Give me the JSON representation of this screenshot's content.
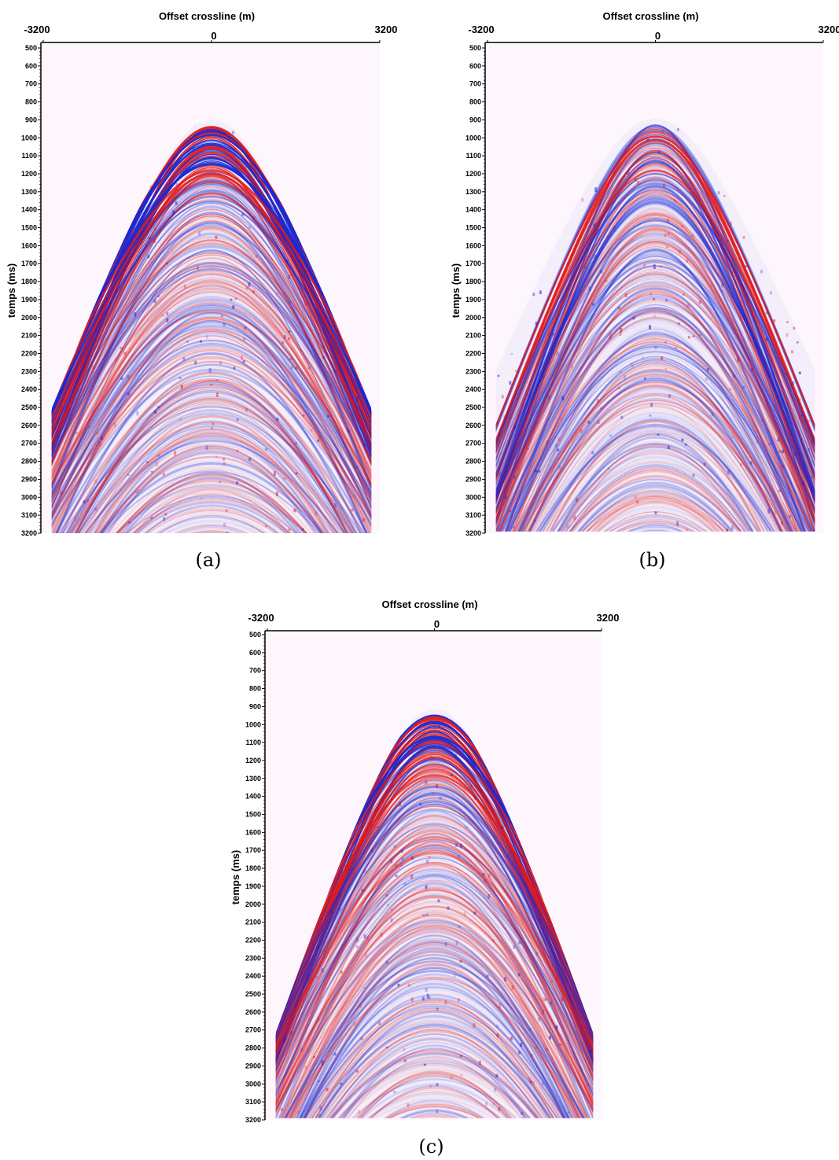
{
  "panels": [
    {
      "xlabel": "Offset crossline (m)",
      "ylabel": "temps (ms)",
      "xlim": [
        -3200,
        3200
      ],
      "xticks": [
        -3200,
        0,
        3200
      ],
      "ylim": [
        500,
        3200
      ],
      "yticks": [
        500,
        600,
        700,
        800,
        900,
        1000,
        1100,
        1200,
        1300,
        1400,
        1500,
        1600,
        1700,
        1800,
        1900,
        2000,
        2100,
        2200,
        2300,
        2400,
        2500,
        2600,
        2700,
        2800,
        2900,
        3000,
        3100,
        3200
      ],
      "caption": "(a)"
    },
    {
      "xlabel": "Offset crossline (m)",
      "ylabel": "temps (ms)",
      "xlim": [
        -3200,
        3200
      ],
      "xticks": [
        -3200,
        0,
        3200
      ],
      "ylim": [
        500,
        3200
      ],
      "yticks": [
        500,
        600,
        700,
        800,
        900,
        1000,
        1100,
        1200,
        1300,
        1400,
        1500,
        1600,
        1700,
        1800,
        1900,
        2000,
        2100,
        2200,
        2300,
        2400,
        2500,
        2600,
        2700,
        2800,
        2900,
        3000,
        3100,
        3200
      ],
      "caption": "(b)"
    },
    {
      "xlabel": "Offset crossline (m)",
      "ylabel": "temps (ms)",
      "xlim": [
        -3200,
        3200
      ],
      "xticks": [
        -3200,
        0,
        3200
      ],
      "ylim": [
        500,
        3200
      ],
      "yticks": [
        500,
        600,
        700,
        800,
        900,
        1000,
        1100,
        1200,
        1300,
        1400,
        1500,
        1600,
        1700,
        1800,
        1900,
        2000,
        2100,
        2200,
        2300,
        2400,
        2500,
        2600,
        2700,
        2800,
        2900,
        3000,
        3100,
        3200
      ],
      "caption": "(c)"
    }
  ]
}
